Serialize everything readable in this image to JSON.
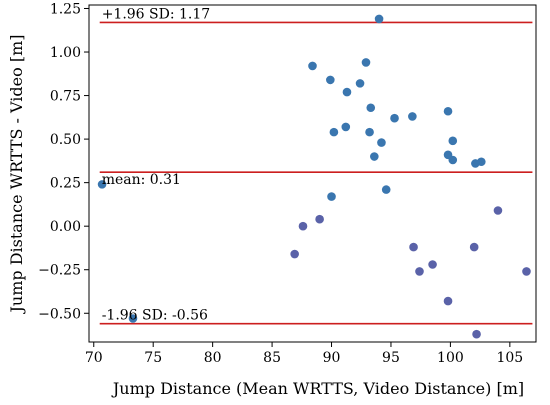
{
  "chart_data": {
    "type": "scatter",
    "title": "",
    "xlabel": "Jump Distance  (Mean WRTTS, Video Distance) [m]",
    "ylabel": "Jump Distance WRTTS - Video [m]",
    "xlim": [
      69.6,
      107.2
    ],
    "ylim": [
      -0.665,
      1.27
    ],
    "xticks": [
      70,
      75,
      80,
      85,
      90,
      95,
      100,
      105
    ],
    "xtick_labels": [
      "70",
      "75",
      "80",
      "85",
      "90",
      "95",
      "100",
      "105"
    ],
    "yticks": [
      -0.5,
      -0.25,
      0.0,
      0.25,
      0.5,
      0.75,
      1.0,
      1.25
    ],
    "ytick_labels": [
      "−0.50",
      "−0.25",
      "0.00",
      "0.25",
      "0.50",
      "0.75",
      "1.00",
      "1.25"
    ],
    "grid": false,
    "reference_lines": [
      {
        "y": 1.17,
        "label": "+1.96 SD:  1.17",
        "color": "#cc1f1f"
      },
      {
        "y": 0.31,
        "label": "mean:  0.31",
        "color": "#cc1f1f"
      },
      {
        "y": -0.56,
        "label": "-1.96 SD:  -0.56",
        "color": "#cc1f1f"
      }
    ],
    "point_color": "#3a76af",
    "point_color_alt": "#5a62a8",
    "points": [
      {
        "x": 70.7,
        "y": 0.24
      },
      {
        "x": 73.3,
        "y": -0.53
      },
      {
        "x": 86.9,
        "y": -0.16,
        "alt": true
      },
      {
        "x": 87.6,
        "y": 0.0,
        "alt": true
      },
      {
        "x": 88.4,
        "y": 0.92
      },
      {
        "x": 89.0,
        "y": 0.04,
        "alt": true
      },
      {
        "x": 89.9,
        "y": 0.84
      },
      {
        "x": 90.0,
        "y": 0.17
      },
      {
        "x": 90.2,
        "y": 0.54
      },
      {
        "x": 91.2,
        "y": 0.57
      },
      {
        "x": 91.3,
        "y": 0.77
      },
      {
        "x": 92.4,
        "y": 0.82
      },
      {
        "x": 92.9,
        "y": 0.94
      },
      {
        "x": 93.2,
        "y": 0.54
      },
      {
        "x": 93.3,
        "y": 0.68
      },
      {
        "x": 93.6,
        "y": 0.4
      },
      {
        "x": 94.0,
        "y": 1.19
      },
      {
        "x": 94.2,
        "y": 0.48
      },
      {
        "x": 94.6,
        "y": 0.21
      },
      {
        "x": 95.3,
        "y": 0.62
      },
      {
        "x": 96.8,
        "y": 0.63
      },
      {
        "x": 96.9,
        "y": -0.12,
        "alt": true
      },
      {
        "x": 97.4,
        "y": -0.26,
        "alt": true
      },
      {
        "x": 98.5,
        "y": -0.22,
        "alt": true
      },
      {
        "x": 99.8,
        "y": 0.66
      },
      {
        "x": 99.8,
        "y": 0.41
      },
      {
        "x": 99.8,
        "y": -0.43,
        "alt": true
      },
      {
        "x": 100.2,
        "y": 0.49
      },
      {
        "x": 100.2,
        "y": 0.38
      },
      {
        "x": 102.0,
        "y": -0.12,
        "alt": true
      },
      {
        "x": 102.1,
        "y": 0.36
      },
      {
        "x": 102.2,
        "y": -0.62,
        "alt": true
      },
      {
        "x": 102.6,
        "y": 0.37
      },
      {
        "x": 104.0,
        "y": 0.09,
        "alt": true
      },
      {
        "x": 106.4,
        "y": -0.26,
        "alt": true
      }
    ]
  }
}
